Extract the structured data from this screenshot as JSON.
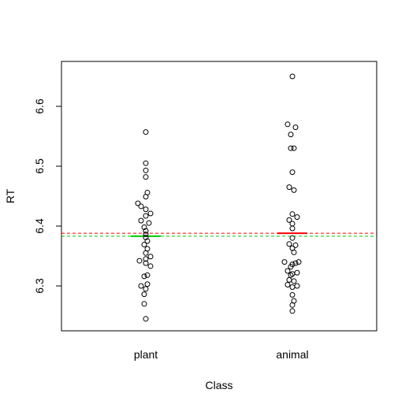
{
  "chart_data": {
    "type": "scatter",
    "title": "",
    "xlabel": "Class",
    "ylabel": "RT",
    "categories": [
      "plant",
      "animal"
    ],
    "ylim": [
      6.225,
      6.675
    ],
    "yticks": [
      "6.3",
      "6.4",
      "6.5",
      "6.6"
    ],
    "grid": false,
    "series": [
      {
        "category": "plant",
        "values": [
          6.557,
          6.505,
          6.493,
          6.482,
          6.456,
          6.449,
          6.438,
          6.433,
          6.428,
          6.421,
          6.417,
          6.409,
          6.405,
          6.398,
          6.392,
          6.386,
          6.381,
          6.375,
          6.369,
          6.362,
          6.355,
          6.349,
          6.345,
          6.342,
          6.338,
          6.333,
          6.318,
          6.316,
          6.303,
          6.3,
          6.295,
          6.286,
          6.27,
          6.245
        ],
        "offsets": [
          0,
          0,
          0,
          0,
          0.5,
          0,
          -2.5,
          -1.5,
          0,
          1.5,
          0,
          -1.5,
          1,
          -0.5,
          0,
          0,
          0,
          0.5,
          -0.5,
          0.5,
          0,
          1.5,
          0,
          -2,
          0,
          1.5,
          0.5,
          -0.5,
          0.5,
          -1.5,
          0,
          -0.5,
          -0.5,
          0
        ],
        "mean": 6.383,
        "mean_color": "#00cc00"
      },
      {
        "category": "animal",
        "values": [
          6.65,
          6.57,
          6.565,
          6.553,
          6.53,
          6.53,
          6.49,
          6.465,
          6.46,
          6.42,
          6.415,
          6.41,
          6.404,
          6.396,
          6.38,
          6.37,
          6.368,
          6.363,
          6.356,
          6.34,
          6.34,
          6.338,
          6.336,
          6.332,
          6.325,
          6.322,
          6.32,
          6.318,
          6.31,
          6.308,
          6.302,
          6.3,
          6.298,
          6.285,
          6.275,
          6.268,
          6.258
        ],
        "offsets": [
          0,
          -1.5,
          1,
          -0.5,
          -0.5,
          0.5,
          0,
          -1,
          0.5,
          0,
          1.5,
          -1,
          0,
          0,
          0,
          -1,
          1,
          0,
          0.5,
          2,
          -2.5,
          1,
          0,
          -0.5,
          -1.5,
          1.5,
          0,
          -0.5,
          -1,
          0.5,
          -1.5,
          1.5,
          0,
          0,
          0.5,
          0,
          0
        ],
        "mean": 6.388,
        "mean_color": "#ff0000"
      }
    ],
    "reference_lines": [
      {
        "value": 6.388,
        "color": "#ff0000",
        "style": "dashed"
      },
      {
        "value": 6.383,
        "color": "#00cc00",
        "style": "dashed"
      }
    ]
  }
}
